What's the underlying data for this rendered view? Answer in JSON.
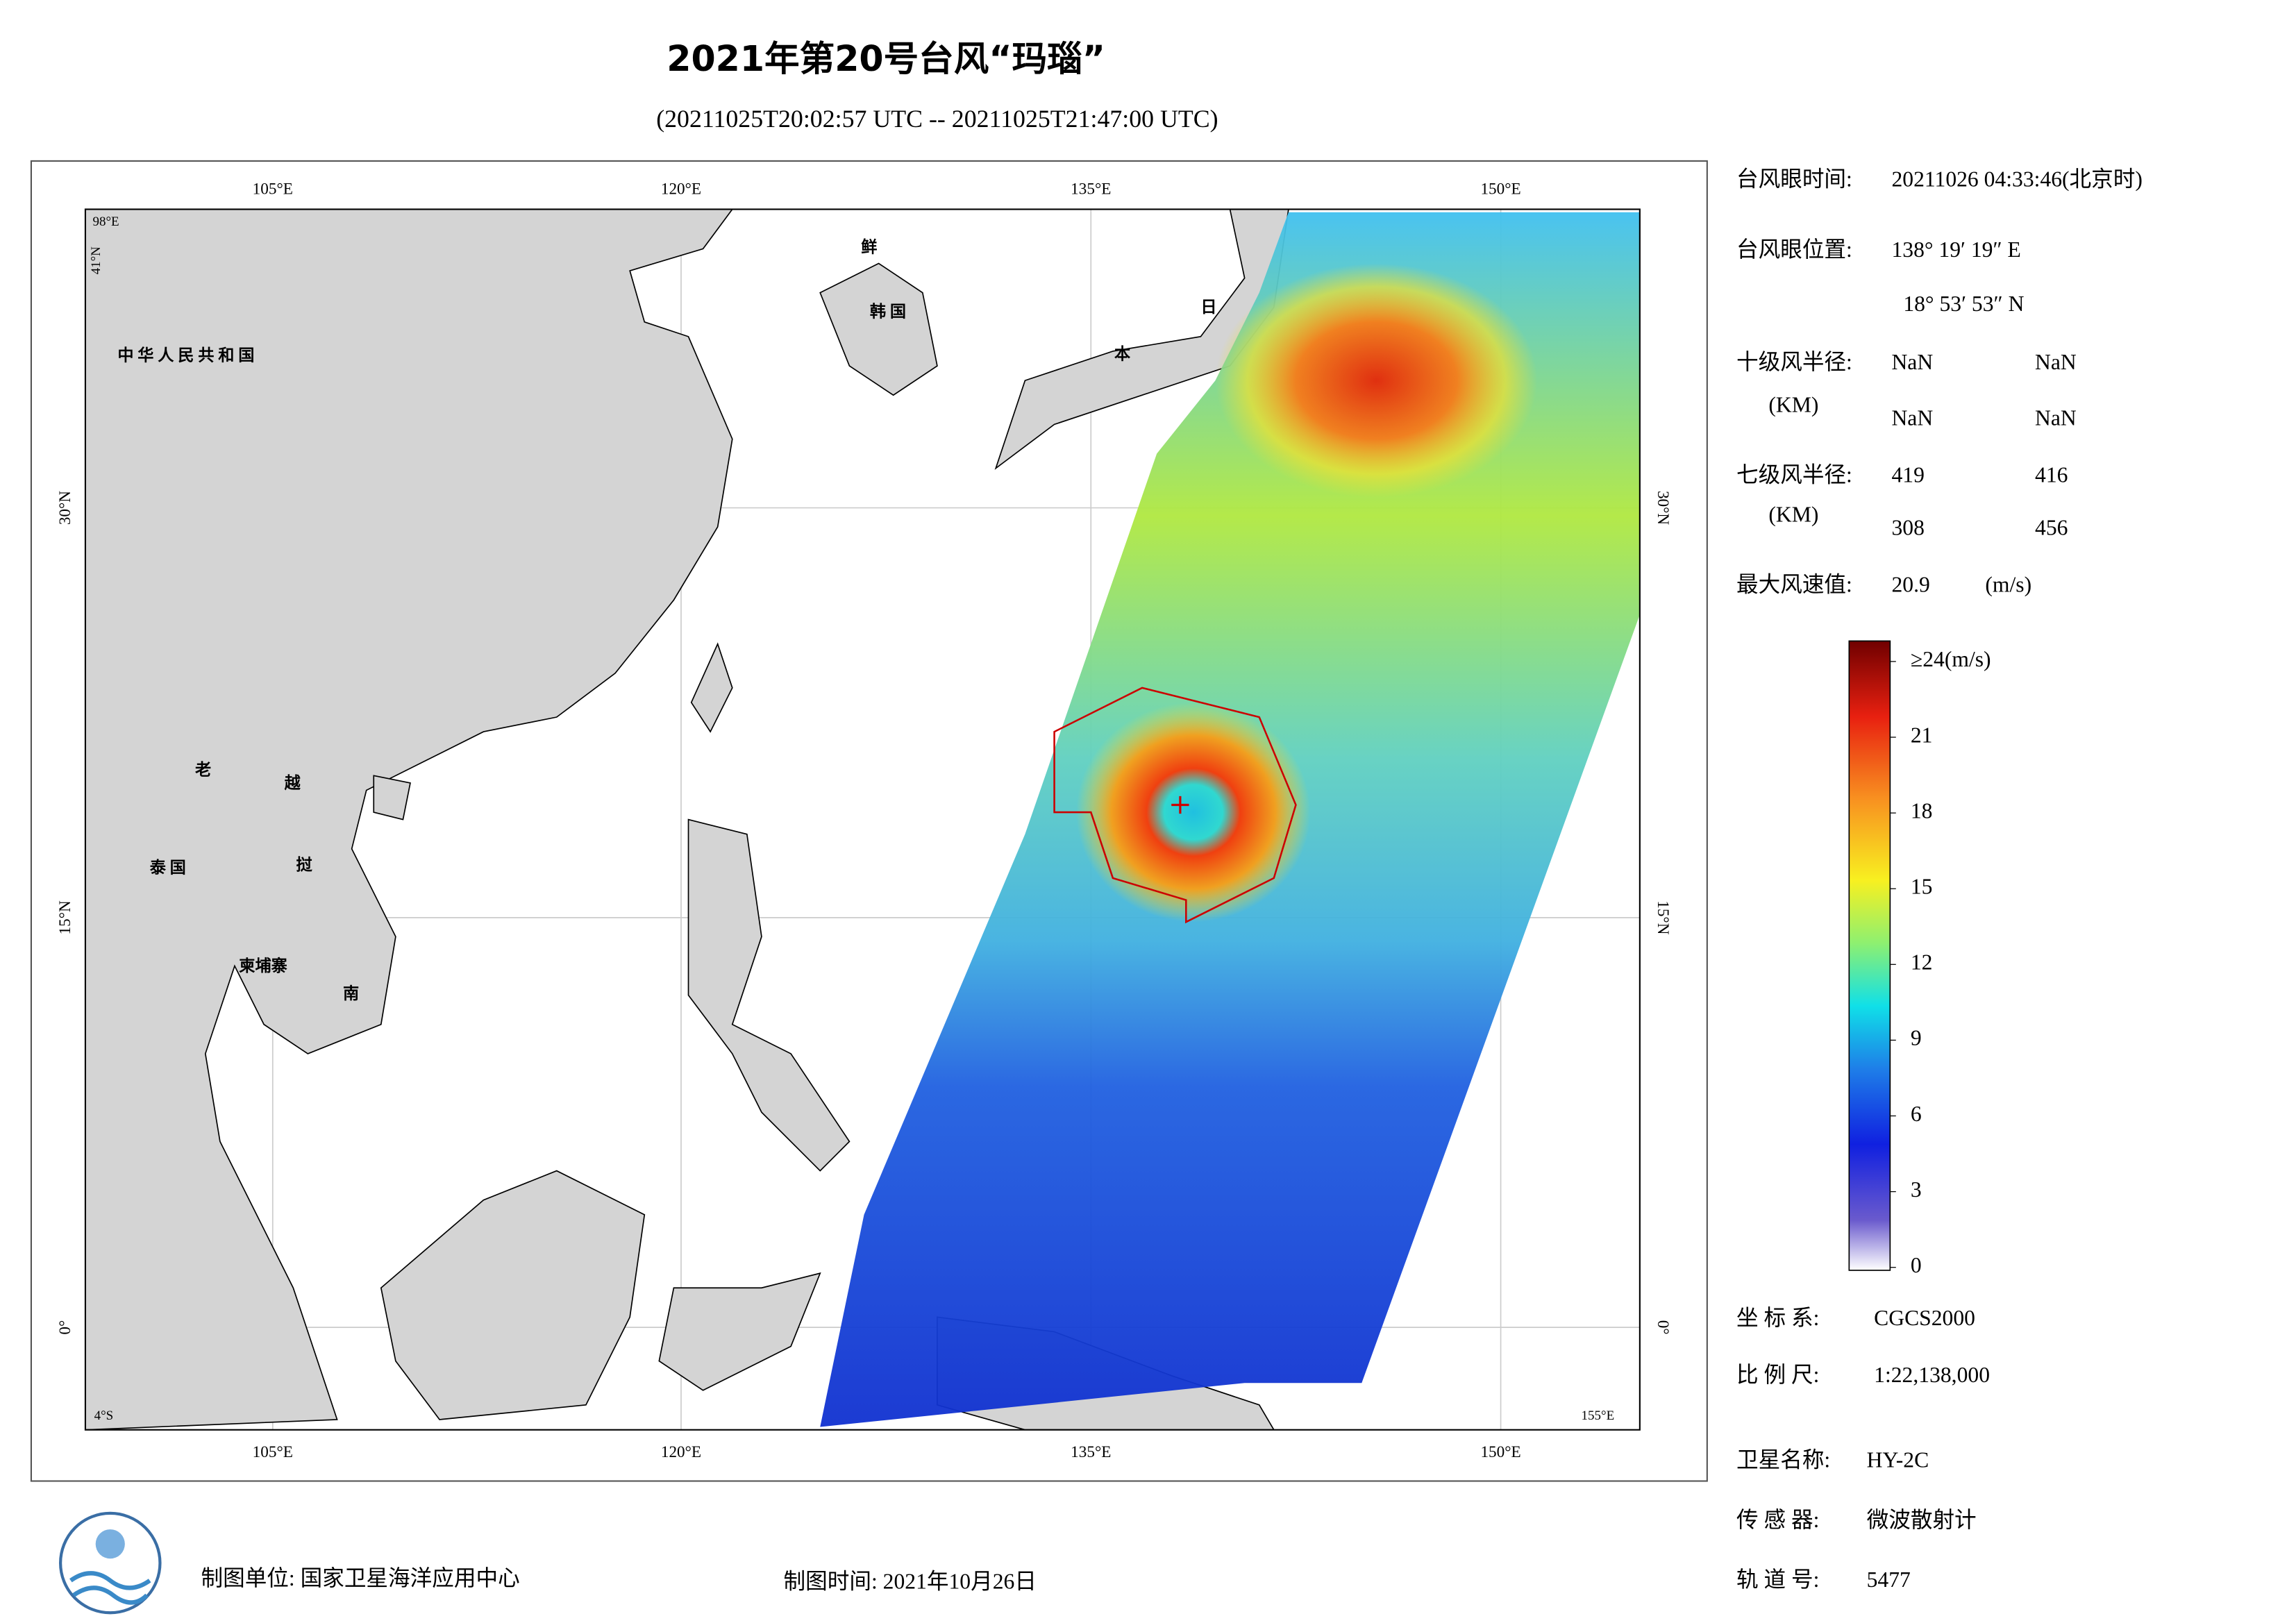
{
  "header": {
    "title": "2021年第20号台风“玛瑙”",
    "subtitle": "(20211025T20:02:57 UTC -- 20211025T21:47:00 UTC)"
  },
  "map": {
    "lon_labels": [
      "105°E",
      "120°E",
      "135°E",
      "150°E"
    ],
    "lat_labels": [
      "30°N",
      "15°N",
      "0°"
    ],
    "corners": [
      "98°E",
      "41°N",
      "4°S",
      "155°E"
    ],
    "places": [
      "中 华 人 民 共 和 国",
      "老",
      "越",
      "泰  国",
      "挝",
      "柬埔寨",
      "南",
      "鲜",
      "韩 国",
      "日",
      "本"
    ]
  },
  "info": {
    "eye_time": {
      "label": "台风眼时间:",
      "value": "20211026 04:33:46(北京时)"
    },
    "eye_position": {
      "label": "台风眼位置:",
      "lon": "138° 19′ 19″ E",
      "lat": "18° 53′ 53″ N"
    },
    "radius_10": {
      "label": "十级风半径:",
      "unit": "(KM)",
      "values": [
        "NaN",
        "NaN",
        "NaN",
        "NaN"
      ]
    },
    "radius_7": {
      "label": "七级风半径:",
      "unit": "(KM)",
      "values": [
        "419",
        "416",
        "308",
        "456"
      ]
    },
    "max_wind": {
      "label": "最大风速值:",
      "value": "20.9",
      "unit": "(m/s)"
    }
  },
  "colorbar": {
    "range": [
      0,
      24
    ],
    "ticks": [
      0,
      3,
      6,
      9,
      12,
      15,
      18,
      21,
      {
        "value": 24,
        "label": "≥24(m/s)"
      }
    ]
  },
  "meta": [
    {
      "label": "坐 标 系:",
      "value": "CGCS2000"
    },
    {
      "label": "比 例 尺:",
      "value": "1:22,138,000"
    },
    {
      "label": "卫星名称:",
      "value": "HY-2C"
    },
    {
      "label": "传 感 器:",
      "value": "微波散射计"
    },
    {
      "label": "轨 道 号:",
      "value": "5477"
    }
  ],
  "footer": {
    "unit": "制图单位:  国家卫星海洋应用中心",
    "date": "制图时间: 2021年10月26日"
  }
}
